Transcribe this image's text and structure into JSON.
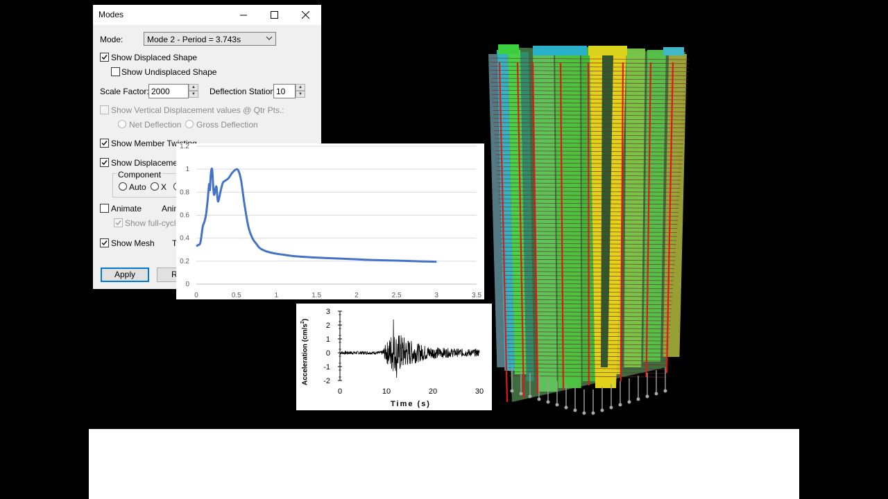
{
  "dialog": {
    "title": "Modes",
    "mode_label": "Mode:",
    "mode_value": "Mode 2 - Period = 3.743s",
    "show_displaced_shape": "Show Displaced Shape",
    "show_undisplaced_shape": "Show Undisplaced Shape",
    "scale_factor_label": "Scale Factor:",
    "scale_factor_value": "2000",
    "deflection_stations_label": "Deflection Stations:",
    "deflection_stations_value": "10",
    "show_vertical_disp": "Show Vertical Displacement values @ Qtr Pts.:",
    "net_deflection": "Net Deflection",
    "gross_deflection": "Gross Deflection",
    "show_member_twisting": "Show Member Twisting",
    "show_displacement": "Show Displacement C",
    "component_label": "Component",
    "auto_label": "Auto",
    "x_label": "X",
    "animate_label": "Animate",
    "anim_label": "Anim",
    "show_full_cycle": "Show full-cycle a",
    "show_mesh": "Show Mesh",
    "t_label": "T",
    "apply_label": "Apply",
    "r_label": "R",
    "checked": {
      "show_displaced_shape": true,
      "show_undisplaced_shape": false,
      "show_vertical_disp": false,
      "show_member_twisting": true,
      "show_displacement": true,
      "animate": false,
      "show_full_cycle": true,
      "show_mesh": true
    }
  },
  "charts": {
    "spectrum_y_ticks": [
      "0",
      "0.2",
      "0.4",
      "0.6",
      "0.8",
      "1",
      "1.2"
    ],
    "spectrum_x_ticks": [
      "0",
      "0.5",
      "1",
      "1.5",
      "2",
      "2.5",
      "3",
      "3.5"
    ],
    "accel_ylabel": "Acceleration (cm/s",
    "accel_ylabel_sup": "2",
    "accel_ylabel_end": ")",
    "accel_xlabel": "Time (s)",
    "accel_y_ticks": [
      "3",
      "2",
      "1",
      "0",
      "-1",
      "-2"
    ],
    "accel_x_ticks": [
      "0",
      "10",
      "20",
      "30"
    ]
  },
  "chart_data": [
    {
      "type": "line",
      "title": "",
      "xlabel": "",
      "ylabel": "",
      "xlim": [
        0,
        3.5
      ],
      "ylim": [
        0,
        1.2
      ],
      "grid": true,
      "color": "#4472c4",
      "x": [
        0,
        0.02,
        0.05,
        0.08,
        0.1,
        0.12,
        0.14,
        0.16,
        0.17,
        0.18,
        0.19,
        0.2,
        0.22,
        0.25,
        0.27,
        0.3,
        0.33,
        0.36,
        0.4,
        0.45,
        0.5,
        0.53,
        0.56,
        0.6,
        0.65,
        0.7,
        0.75,
        0.8,
        0.9,
        1.0,
        1.1,
        1.2,
        1.4,
        1.6,
        1.8,
        2.0,
        2.2,
        2.5,
        2.8,
        3.0
      ],
      "y": [
        0.33,
        0.34,
        0.36,
        0.5,
        0.54,
        0.6,
        0.72,
        0.87,
        0.82,
        0.95,
        1.0,
        0.98,
        0.78,
        0.85,
        0.72,
        0.8,
        0.88,
        0.9,
        0.92,
        0.97,
        1.0,
        0.98,
        0.9,
        0.7,
        0.5,
        0.4,
        0.35,
        0.31,
        0.28,
        0.265,
        0.255,
        0.245,
        0.235,
        0.228,
        0.222,
        0.216,
        0.21,
        0.205,
        0.198,
        0.195
      ]
    },
    {
      "type": "line",
      "title": "",
      "xlabel": "Time (s)",
      "ylabel": "Acceleration (cm/s2)",
      "xlim": [
        0,
        30
      ],
      "ylim": [
        -2,
        3
      ],
      "grid": false,
      "color": "#000000",
      "peak_time": 11.5,
      "peak_positive": 2.4,
      "peak_negative": -1.8
    }
  ]
}
